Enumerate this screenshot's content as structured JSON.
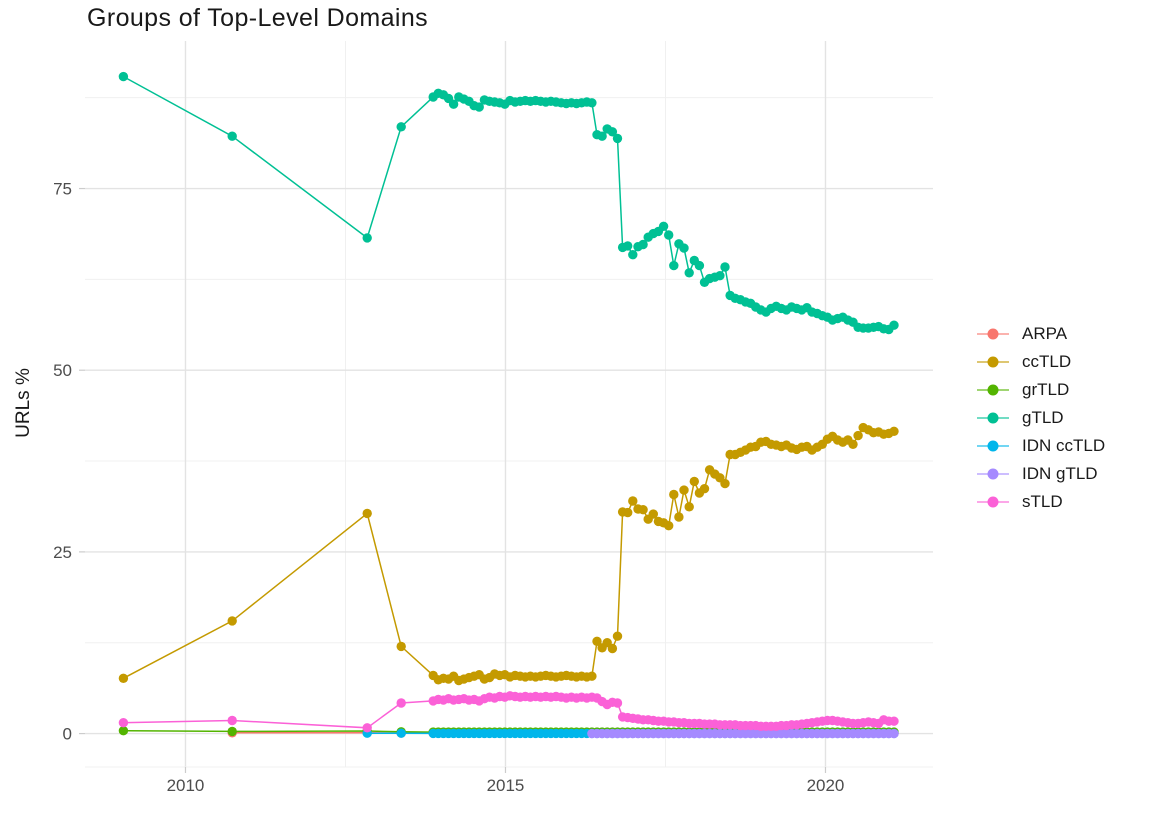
{
  "title": "Groups of Top-Level Domains",
  "ylabel": "URLs %",
  "xlabel": "",
  "chart_data": {
    "type": "scatter",
    "title": "Groups of Top-Level Domains",
    "xlabel": "",
    "ylabel": "URLs %",
    "grid": true,
    "legend_position": "right",
    "xlim": [
      2008.43,
      2021.68
    ],
    "ylim": [
      -4.6,
      95.3
    ],
    "x_ticks": [
      2010,
      2015,
      2020
    ],
    "y_ticks": [
      0,
      25,
      50,
      75
    ],
    "x_minor": [
      2012.5,
      2017.5
    ],
    "y_minor": [
      12.5,
      37.5,
      62.5,
      87.5
    ],
    "colors": {
      "grid_major": "#e3e3e3",
      "grid_minor": "#f0f0f0",
      "axis_text": "#4d4d4d",
      "tick_mark": "#cccccc"
    },
    "series": [
      {
        "name": "ARPA",
        "color": "#F8766D",
        "pre": [
          [
            2010.73,
            0.1
          ],
          [
            2012.84,
            0.1
          ],
          [
            2013.37,
            0.06
          ]
        ],
        "dense": {
          "start": 2013.87,
          "step": 0.08,
          "fill": {
            "count": 91,
            "value": 0.05
          }
        }
      },
      {
        "name": "ccTLD",
        "color": "#C49A00",
        "pre": [
          [
            2009.03,
            7.6
          ],
          [
            2010.73,
            15.5
          ],
          [
            2012.84,
            30.3
          ],
          [
            2013.37,
            12.0
          ]
        ],
        "dense": {
          "start": 2013.87,
          "step": 0.08,
          "values": [
            8.0,
            7.4,
            7.6,
            7.5,
            7.9,
            7.3,
            7.5,
            7.7,
            7.9,
            8.1,
            7.5,
            7.7,
            8.2,
            8.0,
            8.1,
            7.8,
            8.0,
            7.9,
            7.8,
            7.9,
            7.8,
            7.9,
            8.0,
            7.9,
            7.8,
            7.9,
            8.0,
            7.9,
            7.8,
            7.9,
            7.8,
            7.9,
            12.7,
            11.8,
            12.5,
            11.7,
            13.4,
            30.5,
            30.4,
            32.0,
            30.9,
            30.8,
            29.5,
            30.2,
            29.2,
            29.0,
            28.6,
            32.9,
            29.8,
            33.5,
            31.2,
            34.7,
            33.1,
            33.7,
            36.3,
            35.7,
            35.2,
            34.4,
            38.4,
            38.4,
            38.7,
            39.0,
            39.4,
            39.5,
            40.1,
            40.2,
            39.8,
            39.7,
            39.5,
            39.7,
            39.3,
            39.1,
            39.4,
            39.5,
            39.0,
            39.4,
            39.8,
            40.5,
            40.9,
            40.4,
            40.1,
            40.4,
            39.8,
            41.0,
            42.1,
            41.8,
            41.4,
            41.5,
            41.2,
            41.3,
            41.6
          ]
        }
      },
      {
        "name": "grTLD",
        "color": "#53B400",
        "pre": [
          [
            2009.03,
            0.4
          ],
          [
            2010.73,
            0.3
          ],
          [
            2012.84,
            0.35
          ],
          [
            2013.37,
            0.25
          ]
        ],
        "dense": {
          "start": 2013.87,
          "step": 0.08,
          "fill": {
            "count": 91,
            "value": 0.2
          }
        }
      },
      {
        "name": "gTLD",
        "color": "#00C094",
        "pre": [
          [
            2009.03,
            90.4
          ],
          [
            2010.73,
            82.2
          ],
          [
            2012.84,
            68.2
          ],
          [
            2013.37,
            83.5
          ]
        ],
        "dense": {
          "start": 2013.87,
          "step": 0.08,
          "values": [
            87.6,
            88.1,
            87.9,
            87.4,
            86.6,
            87.6,
            87.3,
            87.0,
            86.4,
            86.2,
            87.2,
            87.0,
            86.9,
            86.8,
            86.6,
            87.1,
            86.9,
            87.0,
            87.1,
            87.0,
            87.1,
            87.0,
            86.9,
            87.0,
            86.9,
            86.8,
            86.7,
            86.8,
            86.7,
            86.8,
            86.9,
            86.8,
            82.4,
            82.2,
            83.2,
            82.8,
            81.9,
            66.9,
            67.1,
            65.9,
            67.0,
            67.3,
            68.3,
            68.8,
            69.1,
            69.8,
            68.6,
            64.4,
            67.4,
            66.8,
            63.4,
            65.1,
            64.4,
            62.1,
            62.6,
            62.8,
            63.0,
            64.2,
            60.3,
            59.9,
            59.7,
            59.4,
            59.2,
            58.7,
            58.3,
            58.0,
            58.5,
            58.8,
            58.5,
            58.3,
            58.7,
            58.5,
            58.3,
            58.6,
            58.0,
            57.8,
            57.5,
            57.3,
            56.9,
            57.1,
            57.3,
            56.9,
            56.6,
            55.9,
            55.8,
            55.8,
            55.9,
            56.0,
            55.7,
            55.6,
            56.2
          ]
        }
      },
      {
        "name": "IDN ccTLD",
        "color": "#00B6EB",
        "pre": [
          [
            2012.84,
            0.05
          ],
          [
            2013.37,
            0.05
          ]
        ],
        "dense": {
          "start": 2013.87,
          "step": 0.08,
          "fill": {
            "count": 91,
            "value": 0.03
          }
        }
      },
      {
        "name": "IDN gTLD",
        "color": "#A58AFF",
        "pre": [],
        "dense": {
          "start": 2016.35,
          "step": 0.08,
          "fill": {
            "count": 60,
            "value": 0.0
          }
        }
      },
      {
        "name": "sTLD",
        "color": "#FB61D7",
        "pre": [
          [
            2009.03,
            1.5
          ],
          [
            2010.73,
            1.8
          ],
          [
            2012.84,
            0.8
          ],
          [
            2013.37,
            4.2
          ]
        ],
        "dense": {
          "start": 2013.87,
          "step": 0.08,
          "values": [
            4.5,
            4.7,
            4.6,
            4.8,
            4.6,
            4.7,
            4.8,
            4.6,
            4.7,
            4.5,
            4.8,
            5.0,
            4.9,
            5.1,
            5.0,
            5.2,
            5.1,
            5.0,
            5.1,
            5.0,
            5.1,
            5.0,
            5.1,
            5.0,
            5.1,
            5.0,
            4.9,
            5.0,
            4.9,
            5.0,
            4.9,
            5.0,
            4.9,
            4.4,
            4.0,
            4.3,
            4.2,
            2.3,
            2.2,
            2.1,
            2.0,
            1.9,
            1.9,
            1.8,
            1.7,
            1.7,
            1.6,
            1.6,
            1.5,
            1.5,
            1.4,
            1.4,
            1.4,
            1.3,
            1.3,
            1.3,
            1.2,
            1.2,
            1.2,
            1.2,
            1.1,
            1.1,
            1.1,
            1.1,
            1.0,
            1.0,
            1.0,
            1.0,
            1.1,
            1.1,
            1.2,
            1.2,
            1.3,
            1.4,
            1.5,
            1.6,
            1.7,
            1.8,
            1.8,
            1.7,
            1.6,
            1.5,
            1.4,
            1.4,
            1.5,
            1.6,
            1.5,
            1.4,
            1.9,
            1.7,
            1.7
          ]
        }
      }
    ]
  }
}
